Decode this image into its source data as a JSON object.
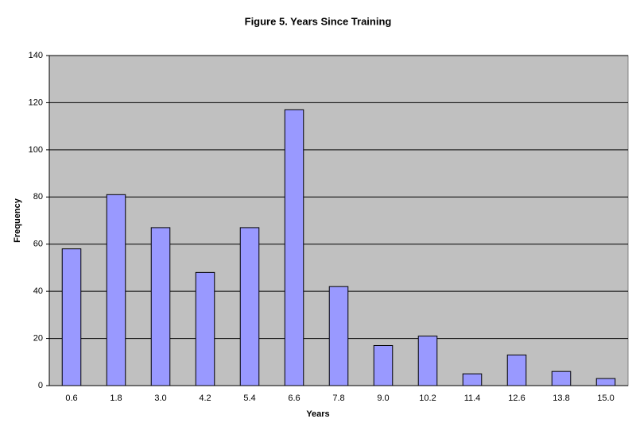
{
  "chart_data": {
    "type": "bar",
    "title": "Figure 5. Years Since Training",
    "x_label": "Years",
    "y_label": "Frequency",
    "categories": [
      "0.6",
      "1.8",
      "3.0",
      "4.2",
      "5.4",
      "6.6",
      "7.8",
      "9.0",
      "10.2",
      "11.4",
      "12.6",
      "13.8",
      "15.0"
    ],
    "values": [
      58,
      81,
      67,
      48,
      67,
      117,
      42,
      17,
      21,
      5,
      13,
      6,
      3
    ],
    "color": "#9999ff",
    "plot_background": "#c0c0c0",
    "ylim": [
      0,
      140
    ],
    "yticks": [
      0,
      20,
      40,
      60,
      80,
      100,
      120,
      140
    ],
    "grid": true
  }
}
